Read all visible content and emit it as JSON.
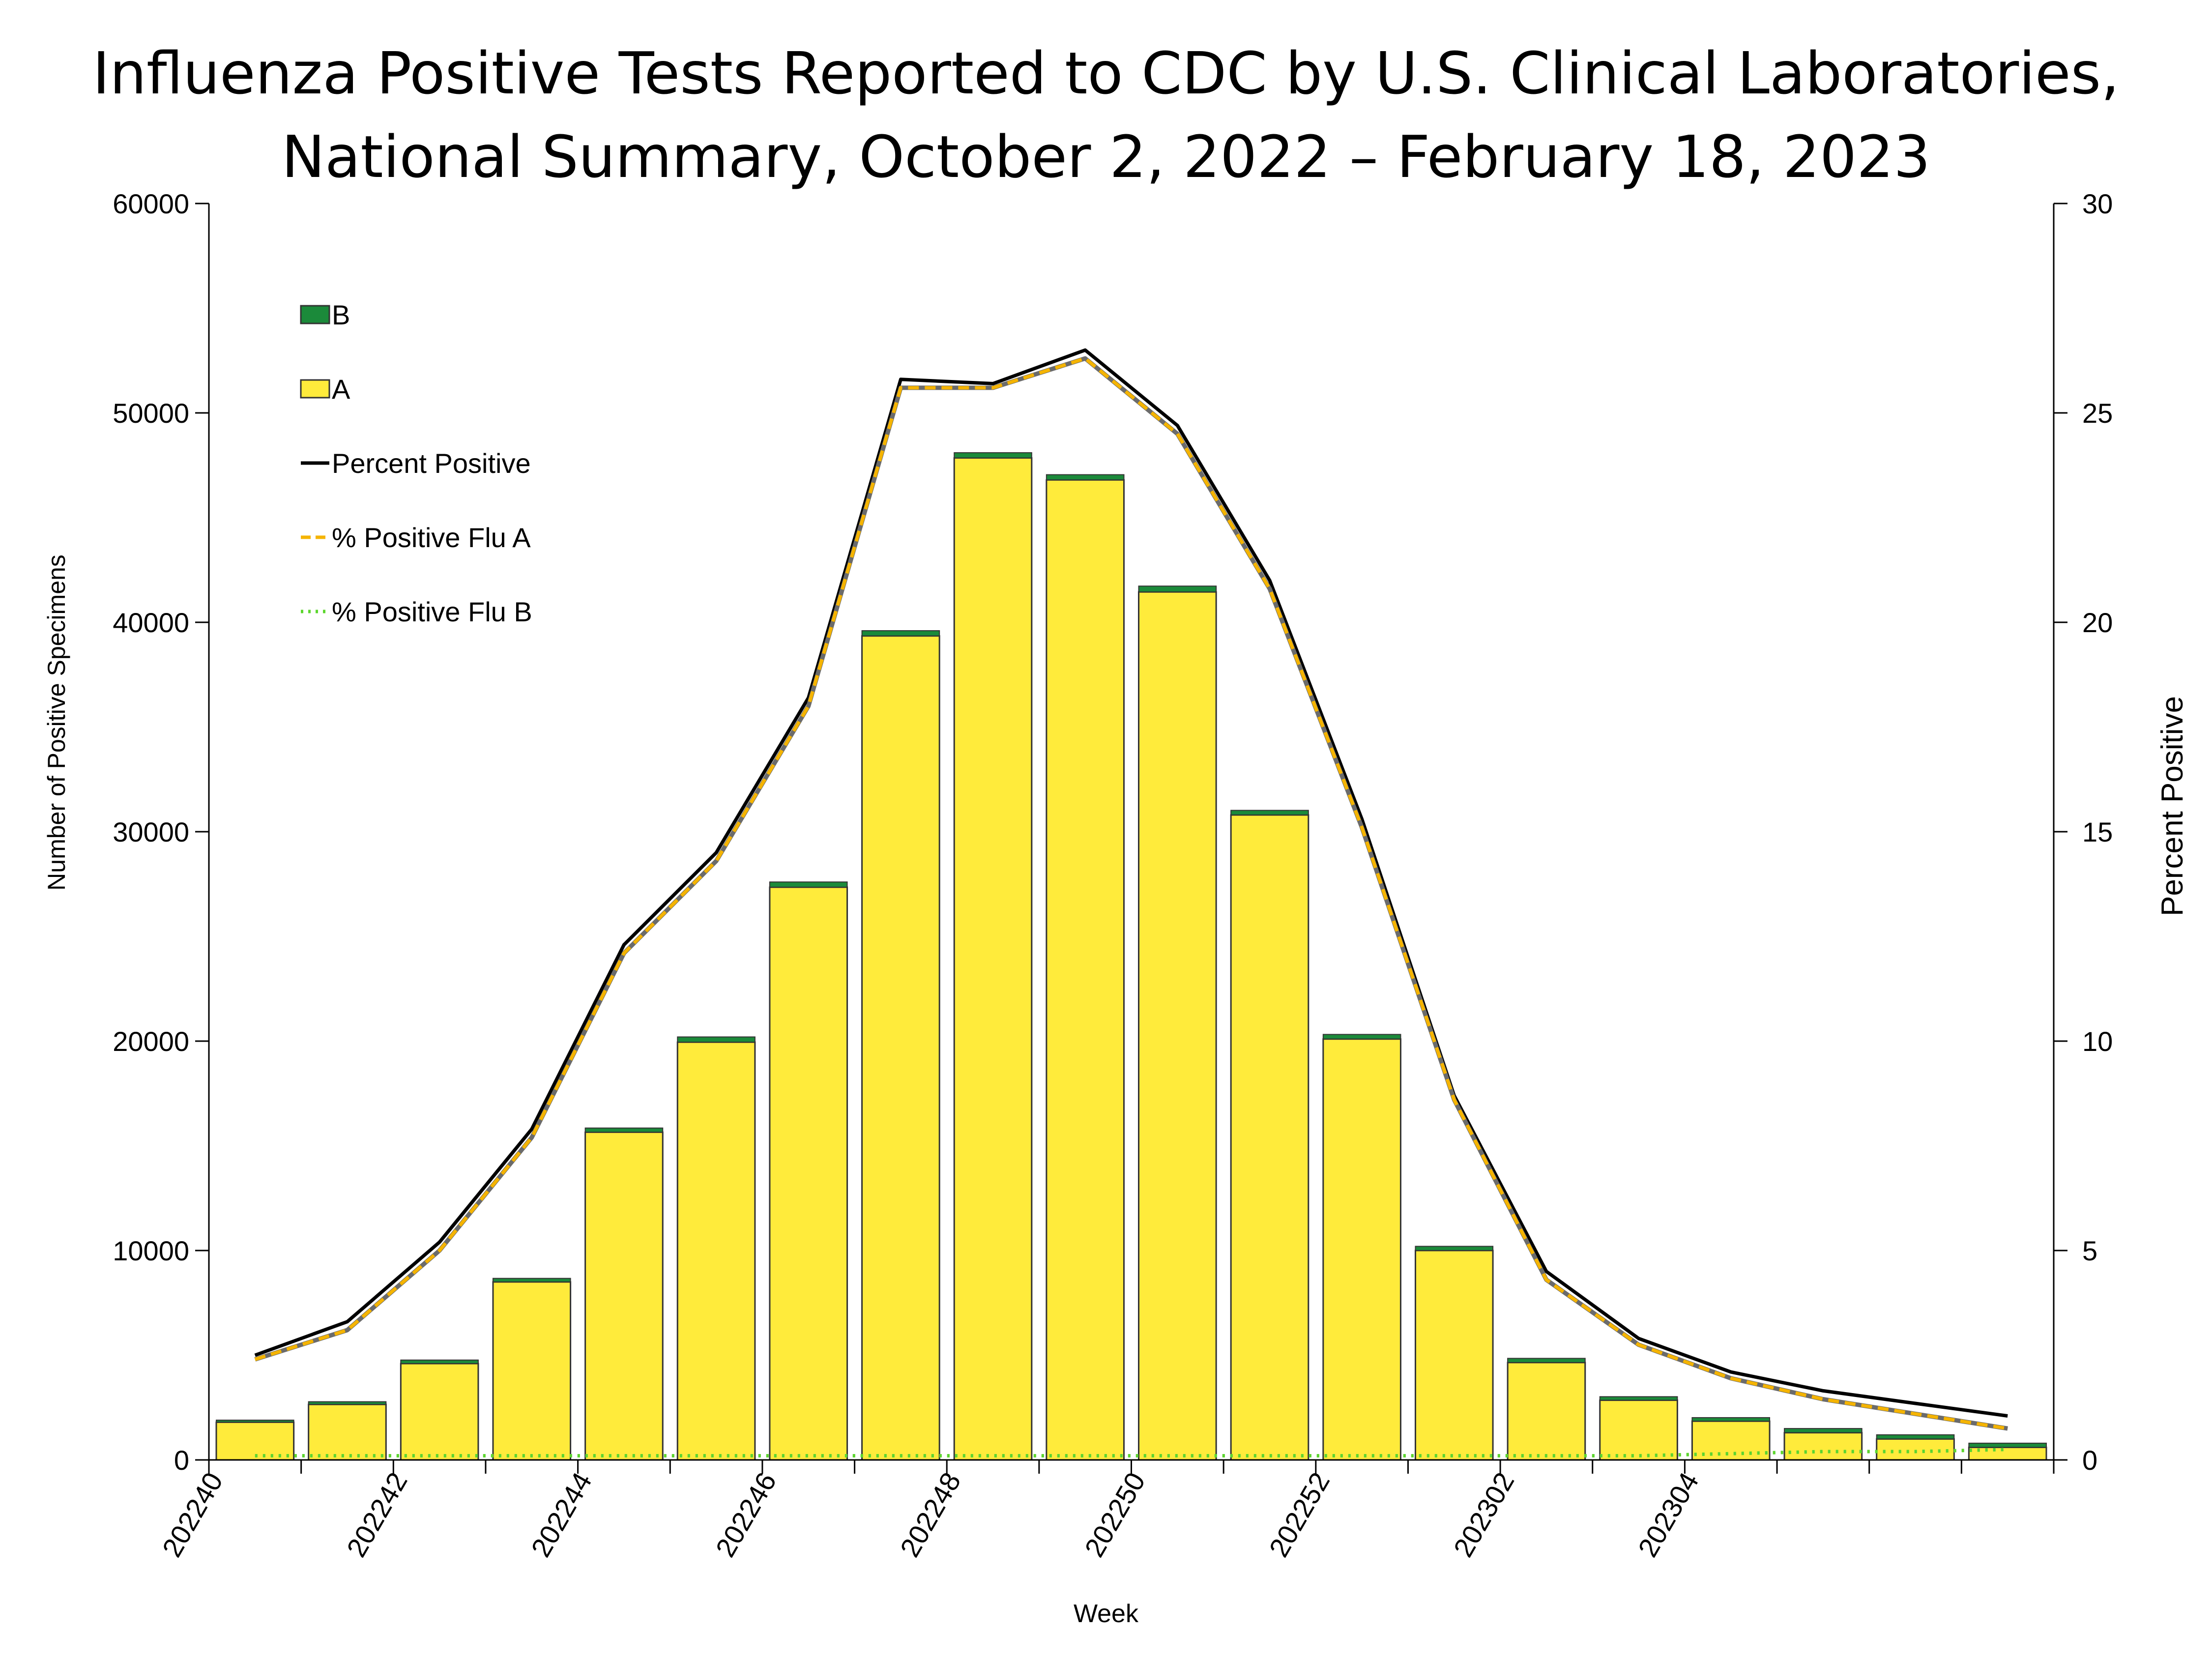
{
  "chart_data": {
    "type": "bar",
    "stacked": true,
    "title_lines": [
      "Influenza Positive Tests Reported to CDC by U.S. Clinical Laboratories,",
      "National Summary, October 2, 2022 – February 18, 2023"
    ],
    "xlabel": "Week",
    "ylabel": "Number of Positive Specimens",
    "y2label": "Percent Positive",
    "ylim": [
      0,
      60000
    ],
    "y2lim": [
      0,
      30
    ],
    "yticks": [
      "0",
      "10000",
      "20000",
      "30000",
      "40000",
      "50000",
      "60000"
    ],
    "y2ticks": [
      "0",
      "5",
      "10",
      "15",
      "20",
      "25",
      "30"
    ],
    "categories": [
      "202240",
      "202241",
      "202242",
      "202243",
      "202244",
      "202245",
      "202246",
      "202247",
      "202248",
      "202249",
      "202250",
      "202251",
      "202252",
      "202301",
      "202302",
      "202303",
      "202304",
      "202305",
      "202306",
      "202307"
    ],
    "xtick_labels": [
      "202240",
      "",
      "202242",
      "",
      "202244",
      "",
      "202246",
      "",
      "202248",
      "",
      "202250",
      "",
      "202252",
      "",
      "202302",
      "",
      "202304",
      "",
      "",
      ""
    ],
    "series": [
      {
        "name": "A",
        "type": "bar",
        "axis": "left",
        "color": "#FFEB3B",
        "values": [
          1800,
          2650,
          4600,
          8500,
          15650,
          19950,
          27350,
          39350,
          47850,
          46800,
          41450,
          30800,
          20100,
          10000,
          4650,
          2850,
          1850,
          1300,
          1000,
          600
        ]
      },
      {
        "name": "B",
        "type": "bar",
        "axis": "left",
        "color": "#1B8A3A",
        "values": [
          100,
          130,
          170,
          170,
          200,
          250,
          250,
          250,
          250,
          250,
          280,
          220,
          220,
          200,
          200,
          170,
          170,
          200,
          200,
          200
        ]
      },
      {
        "name": "Percent Positive",
        "type": "line",
        "axis": "right",
        "color": "#000000",
        "style": "solid",
        "values": [
          2.5,
          3.3,
          5.2,
          7.9,
          12.3,
          14.5,
          18.2,
          25.8,
          25.7,
          26.5,
          24.7,
          21.0,
          15.3,
          8.7,
          4.5,
          2.9,
          2.1,
          1.65,
          1.35,
          1.05
        ]
      },
      {
        "name": "% Positive Flu A",
        "type": "line",
        "axis": "right",
        "color": "#F5B400",
        "style": "dashed",
        "values": [
          2.4,
          3.1,
          5.0,
          7.7,
          12.1,
          14.3,
          18.0,
          25.6,
          25.6,
          26.3,
          24.5,
          20.8,
          15.1,
          8.6,
          4.3,
          2.75,
          1.95,
          1.45,
          1.1,
          0.75
        ]
      },
      {
        "name": "% Positive Flu B",
        "type": "line",
        "axis": "right",
        "color": "#5CD62E",
        "style": "dotted",
        "values": [
          0.1,
          0.1,
          0.1,
          0.1,
          0.1,
          0.1,
          0.1,
          0.1,
          0.1,
          0.1,
          0.1,
          0.1,
          0.1,
          0.1,
          0.1,
          0.1,
          0.15,
          0.2,
          0.2,
          0.25
        ]
      }
    ],
    "legend": [
      {
        "label": "B",
        "kind": "box",
        "color": "#1B8A3A"
      },
      {
        "label": "A",
        "kind": "box",
        "color": "#FFEB3B"
      },
      {
        "label": "Percent Positive",
        "kind": "solid",
        "color": "#000000"
      },
      {
        "label": "% Positive Flu A",
        "kind": "dashed",
        "color": "#F5B400"
      },
      {
        "label": "% Positive Flu B",
        "kind": "dotted",
        "color": "#5CD62E"
      }
    ],
    "legend_position": "top-left"
  }
}
